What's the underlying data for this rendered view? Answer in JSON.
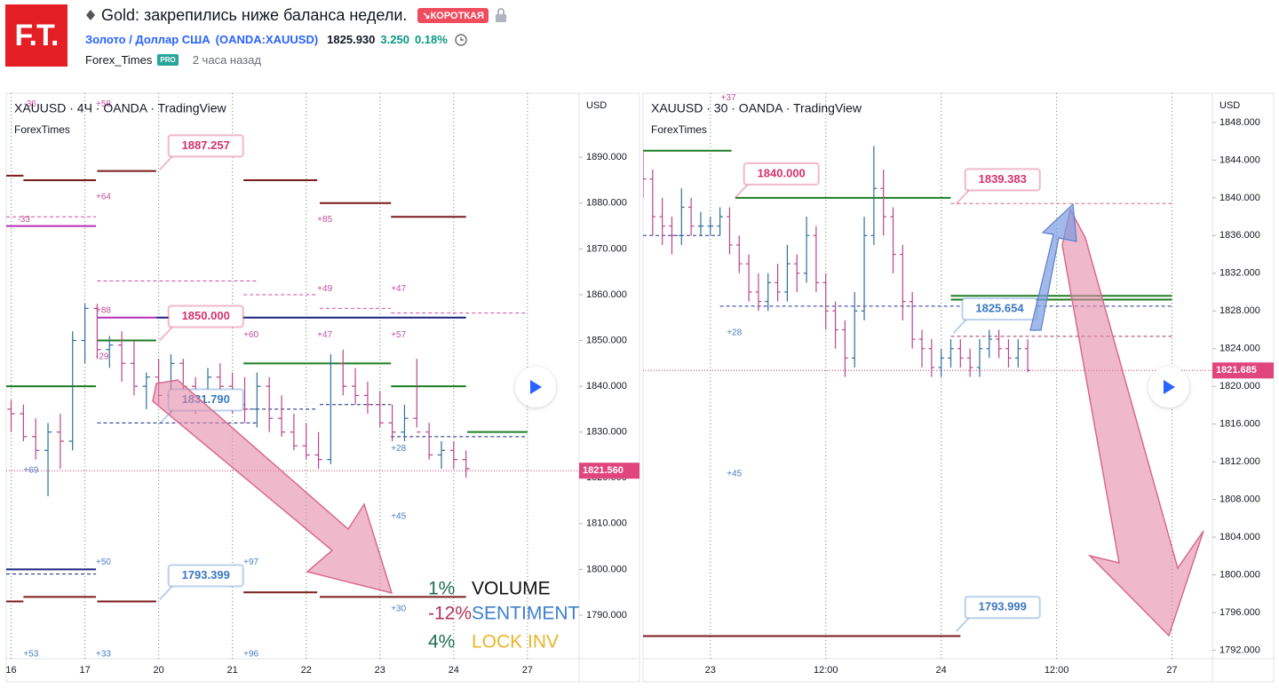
{
  "header": {
    "logo": "F.T.",
    "title": "Gold: закрепились ниже баланса недели.",
    "badge": "↘КОРОТКАЯ",
    "symbol_name": "Золото / Доллар США",
    "ticker": "(OANDA:XAUUSD)",
    "price": "1825.930",
    "change": "3.250",
    "change_pct": "0.18%",
    "author": "Forex_Times",
    "author_badge": "PRO",
    "time": "2 часа назад"
  },
  "indicator_box": {
    "rows": [
      {
        "pct": "1%",
        "pct_color": "#1f6e55",
        "label": "VOLUME",
        "label_color": "#111111"
      },
      {
        "pct": "-12%",
        "pct_color": "#b3335f",
        "label": "SENTIMENT",
        "label_color": "#3f7fd0"
      },
      {
        "pct": "4%",
        "pct_color": "#1f6e55",
        "label": "LOCK INV",
        "label_color": "#e8b52a"
      }
    ]
  },
  "chart_data": [
    {
      "type": "candlestick",
      "title": "XAUUSD · 4Ч · OANDA · TradingView",
      "source": "ForexTimes",
      "currency": "USD",
      "up_color": "#2f6e9c",
      "down_color": "#b8468c",
      "x": [
        0,
        1,
        2,
        3,
        4,
        5,
        6,
        7,
        8,
        9,
        10,
        11,
        12,
        13,
        14,
        15,
        16,
        17,
        18,
        19,
        20,
        21,
        22,
        23,
        24,
        25,
        26,
        27,
        28,
        29,
        30,
        31,
        32,
        33,
        34,
        35,
        36,
        37
      ],
      "open": [
        1835,
        1834,
        1829,
        1826,
        1830,
        1828,
        1850,
        1857,
        1848,
        1849,
        1845,
        1840,
        1842,
        1838,
        1845,
        1840,
        1838,
        1842,
        1840,
        1836,
        1835,
        1840,
        1833,
        1830,
        1827,
        1825,
        1824,
        1845,
        1840,
        1838,
        1836,
        1832,
        1830,
        1833,
        1830,
        1825,
        1826,
        1824
      ],
      "high": [
        1837,
        1836,
        1833,
        1832,
        1834,
        1852,
        1858,
        1858,
        1851,
        1852,
        1850,
        1843,
        1846,
        1847,
        1846,
        1842,
        1844,
        1845,
        1843,
        1842,
        1843,
        1842,
        1838,
        1834,
        1832,
        1830,
        1847,
        1848,
        1844,
        1841,
        1839,
        1836,
        1836,
        1846,
        1832,
        1828,
        1828,
        1826
      ],
      "low": [
        1830,
        1828,
        1824,
        1816,
        1822,
        1826,
        1845,
        1846,
        1844,
        1841,
        1838,
        1835,
        1836,
        1834,
        1836,
        1834,
        1835,
        1837,
        1834,
        1832,
        1831,
        1830,
        1829,
        1826,
        1824,
        1822,
        1823,
        1838,
        1836,
        1834,
        1831,
        1828,
        1828,
        1831,
        1824,
        1822,
        1822,
        1820
      ],
      "close": [
        1834,
        1829,
        1826,
        1830,
        1828,
        1850,
        1857,
        1848,
        1849,
        1845,
        1840,
        1842,
        1838,
        1845,
        1840,
        1838,
        1842,
        1840,
        1836,
        1835,
        1840,
        1833,
        1830,
        1827,
        1825,
        1824,
        1845,
        1840,
        1838,
        1836,
        1832,
        1830,
        1833,
        1830,
        1825,
        1826,
        1824,
        1822
      ],
      "xlim": [
        -0.4,
        46.2
      ],
      "xticks": [
        {
          "value": 0,
          "label": "16"
        },
        {
          "value": 6,
          "label": "17"
        },
        {
          "value": 12,
          "label": "20"
        },
        {
          "value": 18,
          "label": "21"
        },
        {
          "value": 24,
          "label": "22"
        },
        {
          "value": 30,
          "label": "23"
        },
        {
          "value": 36,
          "label": "24"
        },
        {
          "value": 42,
          "label": "27"
        }
      ],
      "ylim": [
        1780.5,
        1904
      ],
      "yticks": [
        {
          "value": 1890,
          "label": "1890.000"
        },
        {
          "value": 1880,
          "label": "1880.000"
        },
        {
          "value": 1870,
          "label": "1870.000"
        },
        {
          "value": 1860,
          "label": "1860.000"
        },
        {
          "value": 1850,
          "label": "1850.000"
        },
        {
          "value": 1840,
          "label": "1840.000"
        },
        {
          "value": 1830,
          "label": "1830.000"
        },
        {
          "value": 1820,
          "label": "1820.000"
        },
        {
          "value": 1810,
          "label": "1810.000"
        },
        {
          "value": 1800,
          "label": "1800.000"
        },
        {
          "value": 1790,
          "label": "1790.000"
        }
      ],
      "last_price": {
        "value": 1821.56,
        "label": "1821.560"
      },
      "levels": [
        {
          "value": 1886,
          "from": -0.4,
          "to": 1,
          "color": "#7b1a1a",
          "dashed": false
        },
        {
          "value": 1885,
          "from": 1,
          "to": 6.9,
          "color": "#7b1a1a",
          "dashed": false
        },
        {
          "value": 1887,
          "from": 7,
          "to": 11.8,
          "color": "#7b1a1a",
          "dashed": false
        },
        {
          "value": 1885,
          "from": 18.9,
          "to": 24.9,
          "color": "#7b1a1a",
          "dashed": false
        },
        {
          "value": 1880,
          "from": 25.1,
          "to": 30.9,
          "color": "#7b1a1a",
          "dashed": false
        },
        {
          "value": 1877,
          "from": 30.9,
          "to": 37,
          "color": "#7b1a1a",
          "dashed": false
        },
        {
          "value": 1793,
          "from": -0.4,
          "to": 1,
          "color": "#7b1a1a",
          "dashed": false
        },
        {
          "value": 1794,
          "from": 1,
          "to": 6.9,
          "color": "#7b1a1a",
          "dashed": false
        },
        {
          "value": 1793,
          "from": 7,
          "to": 11.8,
          "color": "#7b1a1a",
          "dashed": false
        },
        {
          "value": 1795,
          "from": 18.9,
          "to": 24.9,
          "color": "#7b1a1a",
          "dashed": false
        },
        {
          "value": 1794,
          "from": 25.1,
          "to": 37,
          "color": "#7b1a1a",
          "dashed": false
        },
        {
          "value": 1840,
          "from": -0.4,
          "to": 6.9,
          "color": "#1e7d22",
          "dashed": false
        },
        {
          "value": 1850,
          "from": 7,
          "to": 11.8,
          "color": "#1e7d22",
          "dashed": false
        },
        {
          "value": 1845,
          "from": 18.9,
          "to": 30.9,
          "color": "#1e7d22",
          "dashed": false
        },
        {
          "value": 1840,
          "from": 30.9,
          "to": 37,
          "color": "#1e7d22",
          "dashed": false
        },
        {
          "value": 1830,
          "from": 37.1,
          "to": 42,
          "color": "#1e7d22",
          "dashed": false
        },
        {
          "value": 1855,
          "from": 11.8,
          "to": 37,
          "color": "#1a237e",
          "dashed": false
        },
        {
          "value": 1800,
          "from": -0.4,
          "to": 6.9,
          "color": "#1a237e",
          "dashed": false
        },
        {
          "value": 1875,
          "from": -0.4,
          "to": 6.9,
          "color": "#b62fb5",
          "dashed": false
        },
        {
          "value": 1855,
          "from": 7,
          "to": 11.8,
          "color": "#b62fb5",
          "dashed": false
        },
        {
          "value": 1877,
          "from": -0.4,
          "to": 6.9,
          "color": "#d0509a",
          "dashed": true
        },
        {
          "value": 1863,
          "from": 7,
          "to": 20,
          "color": "#d0509a",
          "dashed": true
        },
        {
          "value": 1860,
          "from": 18.9,
          "to": 24.9,
          "color": "#d0509a",
          "dashed": true
        },
        {
          "value": 1857,
          "from": 25.1,
          "to": 30.9,
          "color": "#d0509a",
          "dashed": true
        },
        {
          "value": 1856,
          "from": 30.9,
          "to": 42,
          "color": "#d0509a",
          "dashed": true
        },
        {
          "value": 1799,
          "from": -0.4,
          "to": 6.9,
          "color": "#1a237e",
          "dashed": true
        },
        {
          "value": 1832,
          "from": 7,
          "to": 20,
          "color": "#1a237e",
          "dashed": true
        },
        {
          "value": 1835,
          "from": 18.9,
          "to": 24.9,
          "color": "#1a237e",
          "dashed": true
        },
        {
          "value": 1836,
          "from": 25.1,
          "to": 30.9,
          "color": "#1a237e",
          "dashed": true
        },
        {
          "value": 1829,
          "from": 30.9,
          "to": 42,
          "color": "#1a237e",
          "dashed": true
        }
      ],
      "callouts": [
        {
          "value": 1887.257,
          "label": "1887.257",
          "x": 12.8,
          "color": "#d6336c"
        },
        {
          "value": 1850,
          "label": "1850.000",
          "x": 12.8,
          "color": "#d6336c"
        },
        {
          "value": 1831.79,
          "label": "1831.790",
          "x": 12.8,
          "color": "#3a78c2"
        },
        {
          "value": 1793.399,
          "label": "1793.399",
          "x": 12.8,
          "color": "#3a78c2"
        }
      ],
      "small_labels": [
        {
          "text": "-36",
          "x": 1.0,
          "y": 1901.6,
          "color": "#c24f9a"
        },
        {
          "text": "+58",
          "x": 6.9,
          "y": 1901.6,
          "color": "#c24f9a"
        },
        {
          "text": "+64",
          "x": 6.9,
          "y": 1881.3,
          "color": "#c24f9a"
        },
        {
          "text": "-33",
          "x": 0.5,
          "y": 1876.4,
          "color": "#c24f9a"
        },
        {
          "text": "+85",
          "x": 24.9,
          "y": 1876.4,
          "color": "#c24f9a"
        },
        {
          "text": "+49",
          "x": 24.9,
          "y": 1861.3,
          "color": "#c24f9a"
        },
        {
          "text": "+47",
          "x": 30.9,
          "y": 1861.3,
          "color": "#c24f9a"
        },
        {
          "text": "+88",
          "x": 6.9,
          "y": 1856.5,
          "color": "#c24f9a"
        },
        {
          "text": "+60",
          "x": 18.9,
          "y": 1851.2,
          "color": "#c24f9a"
        },
        {
          "text": "+47",
          "x": 24.9,
          "y": 1851.2,
          "color": "#c24f9a"
        },
        {
          "text": "+57",
          "x": 30.9,
          "y": 1851.2,
          "color": "#c24f9a"
        },
        {
          "text": "-29",
          "x": 6.9,
          "y": 1846.4,
          "color": "#c24f9a"
        },
        {
          "text": "+69",
          "x": 1.0,
          "y": 1821.6,
          "color": "#4a7ec2"
        },
        {
          "text": "+28",
          "x": 30.9,
          "y": 1826.4,
          "color": "#4a7ec2"
        },
        {
          "text": "+45",
          "x": 30.9,
          "y": 1811.5,
          "color": "#4a7ec2"
        },
        {
          "text": "+50",
          "x": 6.9,
          "y": 1801.6,
          "color": "#4a7ec2"
        },
        {
          "text": "+97",
          "x": 18.9,
          "y": 1801.6,
          "color": "#4a7ec2"
        },
        {
          "text": "+30",
          "x": 30.9,
          "y": 1791.4,
          "color": "#4a7ec2"
        },
        {
          "text": "+53",
          "x": 1.0,
          "y": 1781.5,
          "color": "#4a7ec2"
        },
        {
          "text": "+33",
          "x": 6.9,
          "y": 1781.5,
          "color": "#4a7ec2"
        },
        {
          "text": "+96",
          "x": 18.9,
          "y": 1781.5,
          "color": "#4a7ec2"
        }
      ]
    },
    {
      "type": "candlestick",
      "title": "XAUUSD · 30 · OANDA · TradingView",
      "source": "ForexTimes",
      "currency": "USD",
      "up_color": "#2f6e9c",
      "down_color": "#b8468c",
      "x": [
        -7,
        -6,
        -5,
        -4,
        -3,
        -2,
        -1,
        0,
        1,
        2,
        3,
        4,
        5,
        6,
        7,
        8,
        9,
        10,
        11,
        12,
        13,
        14,
        15,
        16,
        17,
        18,
        19,
        20,
        21,
        22,
        23,
        24,
        25,
        26,
        27,
        28,
        29,
        30,
        31,
        32,
        33
      ],
      "open": [
        1843,
        1842,
        1838,
        1837,
        1836,
        1839,
        1837,
        1837,
        1837,
        1838,
        1835,
        1833,
        1830,
        1829,
        1831,
        1830,
        1833,
        1832,
        1836,
        1831,
        1828,
        1826,
        1823,
        1828,
        1836,
        1841,
        1838,
        1834,
        1829,
        1825,
        1824,
        1822,
        1823,
        1824,
        1823,
        1822,
        1824,
        1825,
        1824,
        1823,
        1824
      ],
      "high": [
        1845,
        1843,
        1840,
        1838,
        1841,
        1840,
        1838.5,
        1838,
        1839,
        1839,
        1836,
        1834,
        1832,
        1832,
        1833,
        1835,
        1834,
        1838,
        1837,
        1832,
        1829,
        1827,
        1830,
        1838,
        1845.5,
        1843,
        1839,
        1835,
        1830,
        1826,
        1825,
        1824,
        1825,
        1825,
        1824,
        1825,
        1826,
        1826,
        1825,
        1825,
        1825
      ],
      "low": [
        1840,
        1836,
        1835,
        1834,
        1835,
        1836,
        1836,
        1836,
        1836,
        1834,
        1832,
        1829,
        1828,
        1828,
        1829,
        1829,
        1830,
        1831,
        1830,
        1826,
        1824,
        1821,
        1822,
        1827,
        1835,
        1836,
        1832,
        1827,
        1824,
        1822,
        1821,
        1821,
        1822,
        1822,
        1821,
        1821,
        1823,
        1823,
        1822,
        1822,
        1821.5
      ],
      "close": [
        1842,
        1838,
        1837,
        1836,
        1839,
        1837,
        1837,
        1837,
        1838,
        1835,
        1833,
        1830,
        1829,
        1831,
        1830,
        1833,
        1832,
        1836,
        1831,
        1828,
        1826,
        1823,
        1828,
        1836,
        1841,
        1838,
        1834,
        1829,
        1825,
        1824,
        1822,
        1823,
        1824,
        1823,
        1822,
        1824,
        1825,
        1824,
        1823,
        1824,
        1821.7
      ],
      "xlim": [
        -7,
        52.2
      ],
      "xticks": [
        {
          "value": 0,
          "label": "23"
        },
        {
          "value": 12,
          "label": "12:00"
        },
        {
          "value": 24,
          "label": "24"
        },
        {
          "value": 36,
          "label": "12:00"
        },
        {
          "value": 48,
          "label": "27"
        }
      ],
      "ylim": [
        1791.1,
        1851.1
      ],
      "yticks": [
        {
          "value": 1848,
          "label": "1848.000"
        },
        {
          "value": 1844,
          "label": "1844.000"
        },
        {
          "value": 1840,
          "label": "1840.000"
        },
        {
          "value": 1836,
          "label": "1836.000"
        },
        {
          "value": 1832,
          "label": "1832.000"
        },
        {
          "value": 1828,
          "label": "1828.000"
        },
        {
          "value": 1824,
          "label": "1824.000"
        },
        {
          "value": 1820,
          "label": "1820.000"
        },
        {
          "value": 1816,
          "label": "1816.000"
        },
        {
          "value": 1812,
          "label": "1812.000"
        },
        {
          "value": 1808,
          "label": "1808.000"
        },
        {
          "value": 1804,
          "label": "1804.000"
        },
        {
          "value": 1800,
          "label": "1800.000"
        },
        {
          "value": 1796,
          "label": "1796.000"
        },
        {
          "value": 1792,
          "label": "1792.000"
        }
      ],
      "last_price": {
        "value": 1821.685,
        "label": "1821.685"
      },
      "levels": [
        {
          "value": 1845,
          "from": -7,
          "to": 2.2,
          "color": "#1e7d22",
          "dashed": false
        },
        {
          "value": 1840,
          "from": 2.6,
          "to": 25,
          "color": "#1e7d22",
          "dashed": false
        },
        {
          "value": 1829.6,
          "from": 25,
          "to": 48,
          "color": "#1e7d22",
          "dashed": false
        },
        {
          "value": 1829.2,
          "from": 25,
          "to": 48,
          "color": "#1e7d22",
          "dashed": false
        },
        {
          "value": 1836,
          "from": -7,
          "to": 1,
          "color": "#283593",
          "dashed": true
        },
        {
          "value": 1828.5,
          "from": 1,
          "to": 48,
          "color": "#283593",
          "dashed": true
        },
        {
          "value": 1793.5,
          "from": -7,
          "to": 26,
          "color": "#7b1a1a",
          "dashed": false
        },
        {
          "value": 1839.4,
          "from": 25,
          "to": 48,
          "color": "#d36a8c",
          "dashed": true
        },
        {
          "value": 1825.3,
          "from": 25,
          "to": 48,
          "color": "#9b3b5a",
          "dashed": true
        }
      ],
      "callouts": [
        {
          "value": 1840,
          "label": "1840.000",
          "x": 3.5,
          "color": "#d6336c"
        },
        {
          "value": 1839.383,
          "label": "1839.383",
          "x": 26.5,
          "color": "#d6336c"
        },
        {
          "value": 1825.654,
          "label": "1825.654",
          "x": 26.2,
          "color": "#3a78c2"
        },
        {
          "value": 1793.999,
          "label": "1793.999",
          "x": 26.5,
          "color": "#3a78c2"
        }
      ],
      "small_labels": [
        {
          "text": "+37",
          "x": 1.1,
          "y": 1850.6,
          "color": "#c24f9a"
        },
        {
          "text": "+28",
          "x": 1.7,
          "y": 1825.7,
          "color": "#4a7ec2"
        },
        {
          "text": "+45",
          "x": 1.7,
          "y": 1810.7,
          "color": "#4a7ec2"
        }
      ]
    }
  ]
}
